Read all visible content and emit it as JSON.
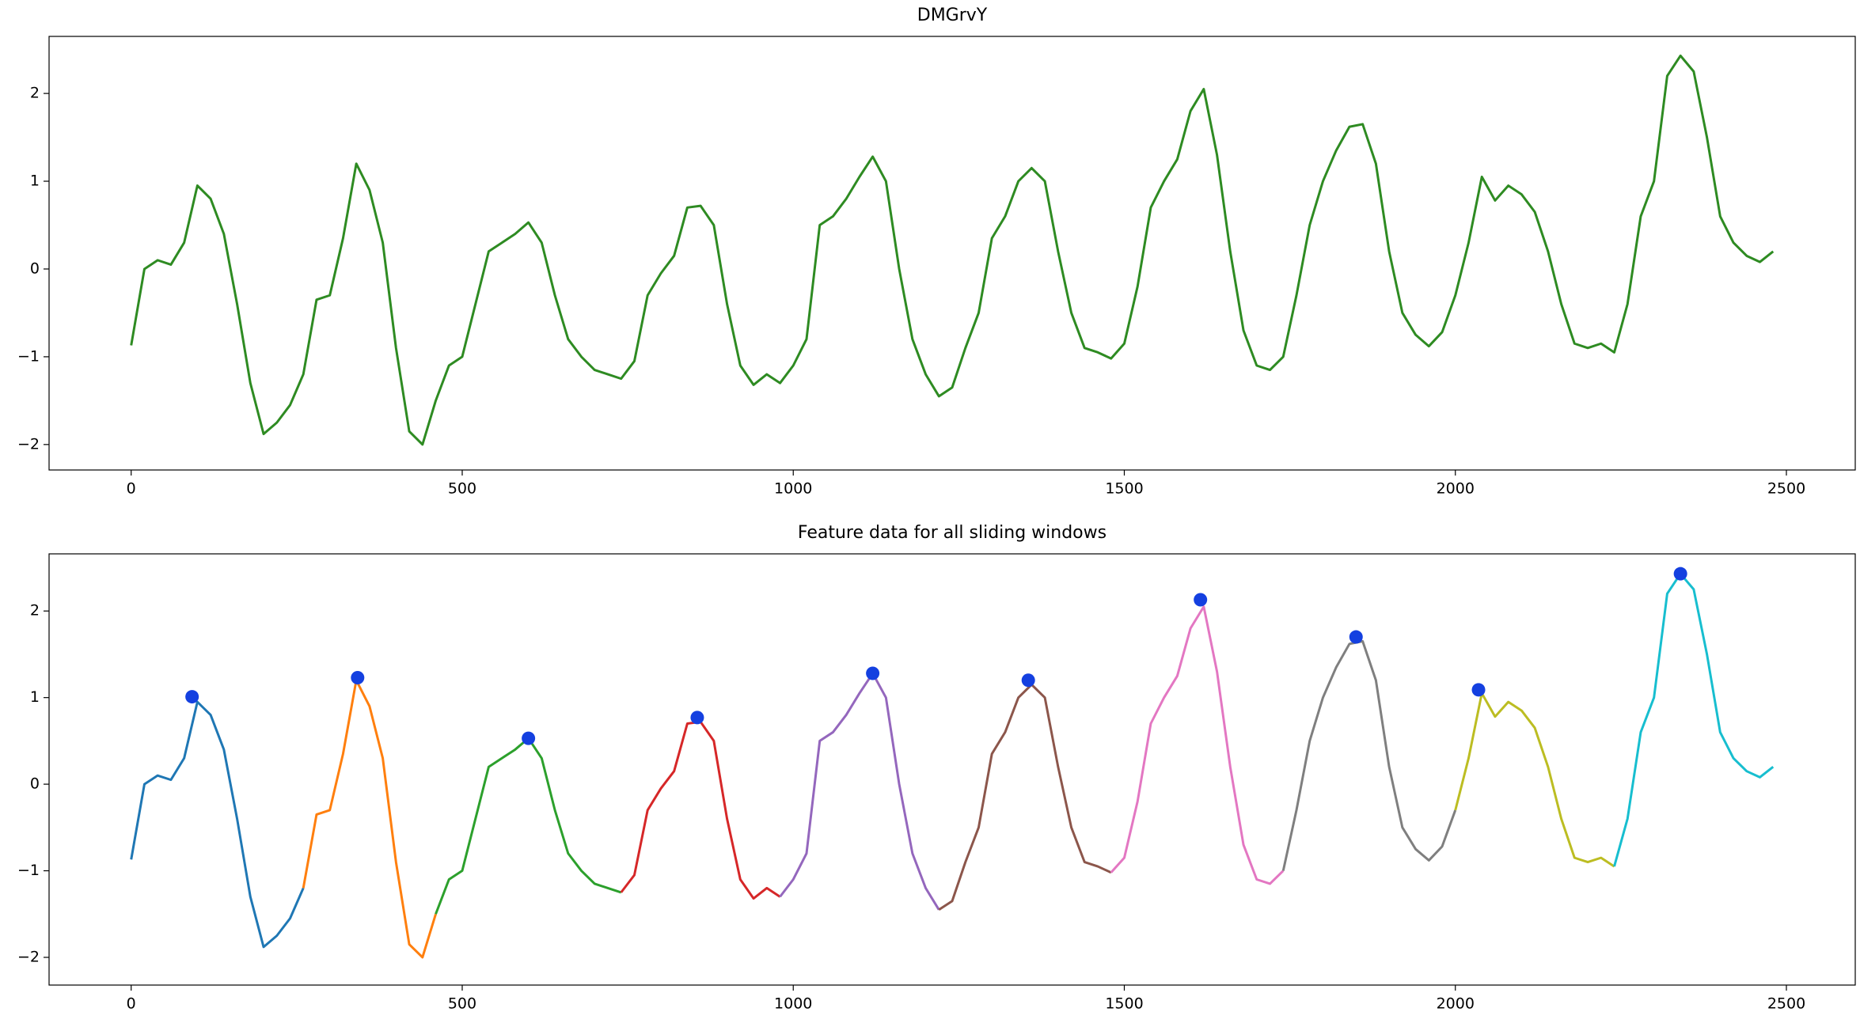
{
  "chart_data": [
    {
      "type": "line",
      "title": "DMGrvY",
      "xlim": [
        -124,
        2604
      ],
      "ylim": [
        -2.29,
        2.65
      ],
      "xticks": [
        0,
        500,
        1000,
        1500,
        2000,
        2500
      ],
      "yticks": [
        {
          "value": -2,
          "label": "−2"
        },
        {
          "value": -1,
          "label": "−1"
        },
        0,
        1,
        2
      ],
      "series": [
        {
          "color": "#2e8b22",
          "x": [
            0,
            20,
            40,
            60,
            80,
            100,
            120,
            140,
            160,
            180,
            200,
            220,
            240,
            260,
            280,
            300,
            320,
            340,
            360,
            380,
            400,
            420,
            440,
            460,
            480,
            500,
            520,
            540,
            560,
            580,
            600,
            620,
            640,
            660,
            680,
            700,
            720,
            740,
            760,
            780,
            800,
            820,
            840,
            860,
            880,
            900,
            920,
            940,
            960,
            980,
            1000,
            1020,
            1040,
            1060,
            1080,
            1100,
            1120,
            1140,
            1160,
            1180,
            1200,
            1220,
            1240,
            1260,
            1280,
            1300,
            1320,
            1340,
            1360,
            1380,
            1400,
            1420,
            1440,
            1460,
            1480,
            1500,
            1520,
            1540,
            1560,
            1580,
            1600,
            1620,
            1640,
            1660,
            1680,
            1700,
            1720,
            1740,
            1760,
            1780,
            1800,
            1820,
            1840,
            1860,
            1880,
            1900,
            1920,
            1940,
            1960,
            1980,
            2000,
            2020,
            2040,
            2060,
            2080,
            2100,
            2120,
            2140,
            2160,
            2180,
            2200,
            2220,
            2240,
            2260,
            2280,
            2300,
            2320,
            2340,
            2360,
            2380,
            2400,
            2420,
            2440,
            2460,
            2480
          ],
          "values": [
            -0.87,
            0.0,
            0.1,
            0.05,
            0.3,
            0.95,
            0.8,
            0.4,
            -0.4,
            -1.3,
            -1.88,
            -1.75,
            -1.55,
            -1.2,
            -0.35,
            -0.3,
            0.35,
            1.2,
            0.9,
            0.3,
            -0.9,
            -1.85,
            -2.0,
            -1.5,
            -1.1,
            -1.0,
            -0.4,
            0.2,
            0.3,
            0.4,
            0.53,
            0.3,
            -0.3,
            -0.8,
            -1.0,
            -1.15,
            -1.2,
            -1.25,
            -1.05,
            -0.3,
            -0.05,
            0.15,
            0.7,
            0.72,
            0.5,
            -0.4,
            -1.1,
            -1.32,
            -1.2,
            -1.3,
            -1.1,
            -0.8,
            0.5,
            0.6,
            0.8,
            1.05,
            1.28,
            1.0,
            0.0,
            -0.8,
            -1.2,
            -1.45,
            -1.35,
            -0.9,
            -0.5,
            0.35,
            0.6,
            1.0,
            1.15,
            1.0,
            0.2,
            -0.5,
            -0.9,
            -0.95,
            -1.02,
            -0.85,
            -0.2,
            0.7,
            1.0,
            1.25,
            1.8,
            2.05,
            1.3,
            0.2,
            -0.7,
            -1.1,
            -1.15,
            -1.0,
            -0.3,
            0.5,
            1.0,
            1.35,
            1.62,
            1.65,
            1.2,
            0.2,
            -0.5,
            -0.75,
            -0.88,
            -0.72,
            -0.3,
            0.3,
            1.05,
            0.78,
            0.95,
            0.85,
            0.65,
            0.2,
            -0.4,
            -0.85,
            -0.9,
            -0.85,
            -0.95,
            -0.4,
            0.6,
            1.0,
            2.2,
            2.43,
            2.25,
            1.5,
            0.6,
            0.3,
            0.15,
            0.08,
            0.2
          ]
        }
      ]
    },
    {
      "type": "line",
      "title": "Feature data for all sliding windows",
      "xlim": [
        -124,
        2604
      ],
      "ylim": [
        -2.32,
        2.66
      ],
      "xticks": [
        0,
        500,
        1000,
        1500,
        2000,
        2500
      ],
      "yticks": [
        {
          "value": -2,
          "label": "−2"
        },
        {
          "value": -1,
          "label": "−1"
        },
        0,
        1,
        2
      ],
      "series": [
        {
          "color": "#1f77b4",
          "x": [
            0,
            20,
            40,
            60,
            80,
            100,
            120,
            140,
            160,
            180,
            200,
            220,
            240,
            260
          ],
          "values": [
            -0.87,
            0.0,
            0.1,
            0.05,
            0.3,
            0.95,
            0.8,
            0.4,
            -0.4,
            -1.3,
            -1.88,
            -1.75,
            -1.55,
            -1.2
          ]
        },
        {
          "color": "#ff7f0e",
          "x": [
            260,
            280,
            300,
            320,
            340,
            360,
            380,
            400,
            420,
            440,
            460
          ],
          "values": [
            -1.2,
            -0.35,
            -0.3,
            0.35,
            1.2,
            0.9,
            0.3,
            -0.9,
            -1.85,
            -2.0,
            -1.5
          ]
        },
        {
          "color": "#2ca02c",
          "x": [
            460,
            480,
            500,
            520,
            540,
            560,
            580,
            600,
            620,
            640,
            660,
            680,
            700,
            720,
            740
          ],
          "values": [
            -1.5,
            -1.1,
            -1.0,
            -0.4,
            0.2,
            0.3,
            0.4,
            0.53,
            0.3,
            -0.3,
            -0.8,
            -1.0,
            -1.15,
            -1.2,
            -1.25
          ]
        },
        {
          "color": "#d62728",
          "x": [
            740,
            760,
            780,
            800,
            820,
            840,
            860,
            880,
            900,
            920,
            940,
            960,
            980
          ],
          "values": [
            -1.25,
            -1.05,
            -0.3,
            -0.05,
            0.15,
            0.7,
            0.72,
            0.5,
            -0.4,
            -1.1,
            -1.32,
            -1.2,
            -1.3
          ]
        },
        {
          "color": "#9467bd",
          "x": [
            980,
            1000,
            1020,
            1040,
            1060,
            1080,
            1100,
            1120,
            1140,
            1160,
            1180,
            1200,
            1220
          ],
          "values": [
            -1.3,
            -1.1,
            -0.8,
            0.5,
            0.6,
            0.8,
            1.05,
            1.28,
            1.0,
            0.0,
            -0.8,
            -1.2,
            -1.45
          ]
        },
        {
          "color": "#8c564b",
          "x": [
            1220,
            1240,
            1260,
            1280,
            1300,
            1320,
            1340,
            1360,
            1380,
            1400,
            1420,
            1440,
            1460,
            1480
          ],
          "values": [
            -1.45,
            -1.35,
            -0.9,
            -0.5,
            0.35,
            0.6,
            1.0,
            1.15,
            1.0,
            0.2,
            -0.5,
            -0.9,
            -0.95,
            -1.02
          ]
        },
        {
          "color": "#e377c2",
          "x": [
            1480,
            1500,
            1520,
            1540,
            1560,
            1580,
            1600,
            1620,
            1640,
            1660,
            1680,
            1700,
            1720,
            1740
          ],
          "values": [
            -1.02,
            -0.85,
            -0.2,
            0.7,
            1.0,
            1.25,
            1.8,
            2.05,
            1.3,
            0.2,
            -0.7,
            -1.1,
            -1.15,
            -1.0
          ]
        },
        {
          "color": "#7f7f7f",
          "x": [
            1740,
            1760,
            1780,
            1800,
            1820,
            1840,
            1860,
            1880,
            1900,
            1920,
            1940,
            1960,
            1980,
            2000
          ],
          "values": [
            -1.0,
            -0.3,
            0.5,
            1.0,
            1.35,
            1.62,
            1.65,
            1.2,
            0.2,
            -0.5,
            -0.75,
            -0.88,
            -0.72,
            -0.3
          ]
        },
        {
          "color": "#bcbd22",
          "x": [
            2000,
            2020,
            2040,
            2060,
            2080,
            2100,
            2120,
            2140,
            2160,
            2180,
            2200,
            2220,
            2240
          ],
          "values": [
            -0.3,
            0.3,
            1.05,
            0.78,
            0.95,
            0.85,
            0.65,
            0.2,
            -0.4,
            -0.85,
            -0.9,
            -0.85,
            -0.95
          ]
        },
        {
          "color": "#17becf",
          "x": [
            2240,
            2260,
            2280,
            2300,
            2320,
            2340,
            2360,
            2380,
            2400,
            2420,
            2440,
            2460,
            2480
          ],
          "values": [
            -0.95,
            -0.4,
            0.6,
            1.0,
            2.2,
            2.43,
            2.25,
            1.5,
            0.6,
            0.3,
            0.15,
            0.08,
            0.2
          ]
        }
      ],
      "peaks": {
        "color": "#1440e0",
        "x": [
          92,
          342,
          600,
          855,
          1120,
          1355,
          1615,
          1850,
          2035,
          2340
        ],
        "values": [
          1.01,
          1.23,
          0.53,
          0.77,
          1.28,
          1.2,
          2.13,
          1.7,
          1.09,
          2.43
        ]
      }
    }
  ]
}
